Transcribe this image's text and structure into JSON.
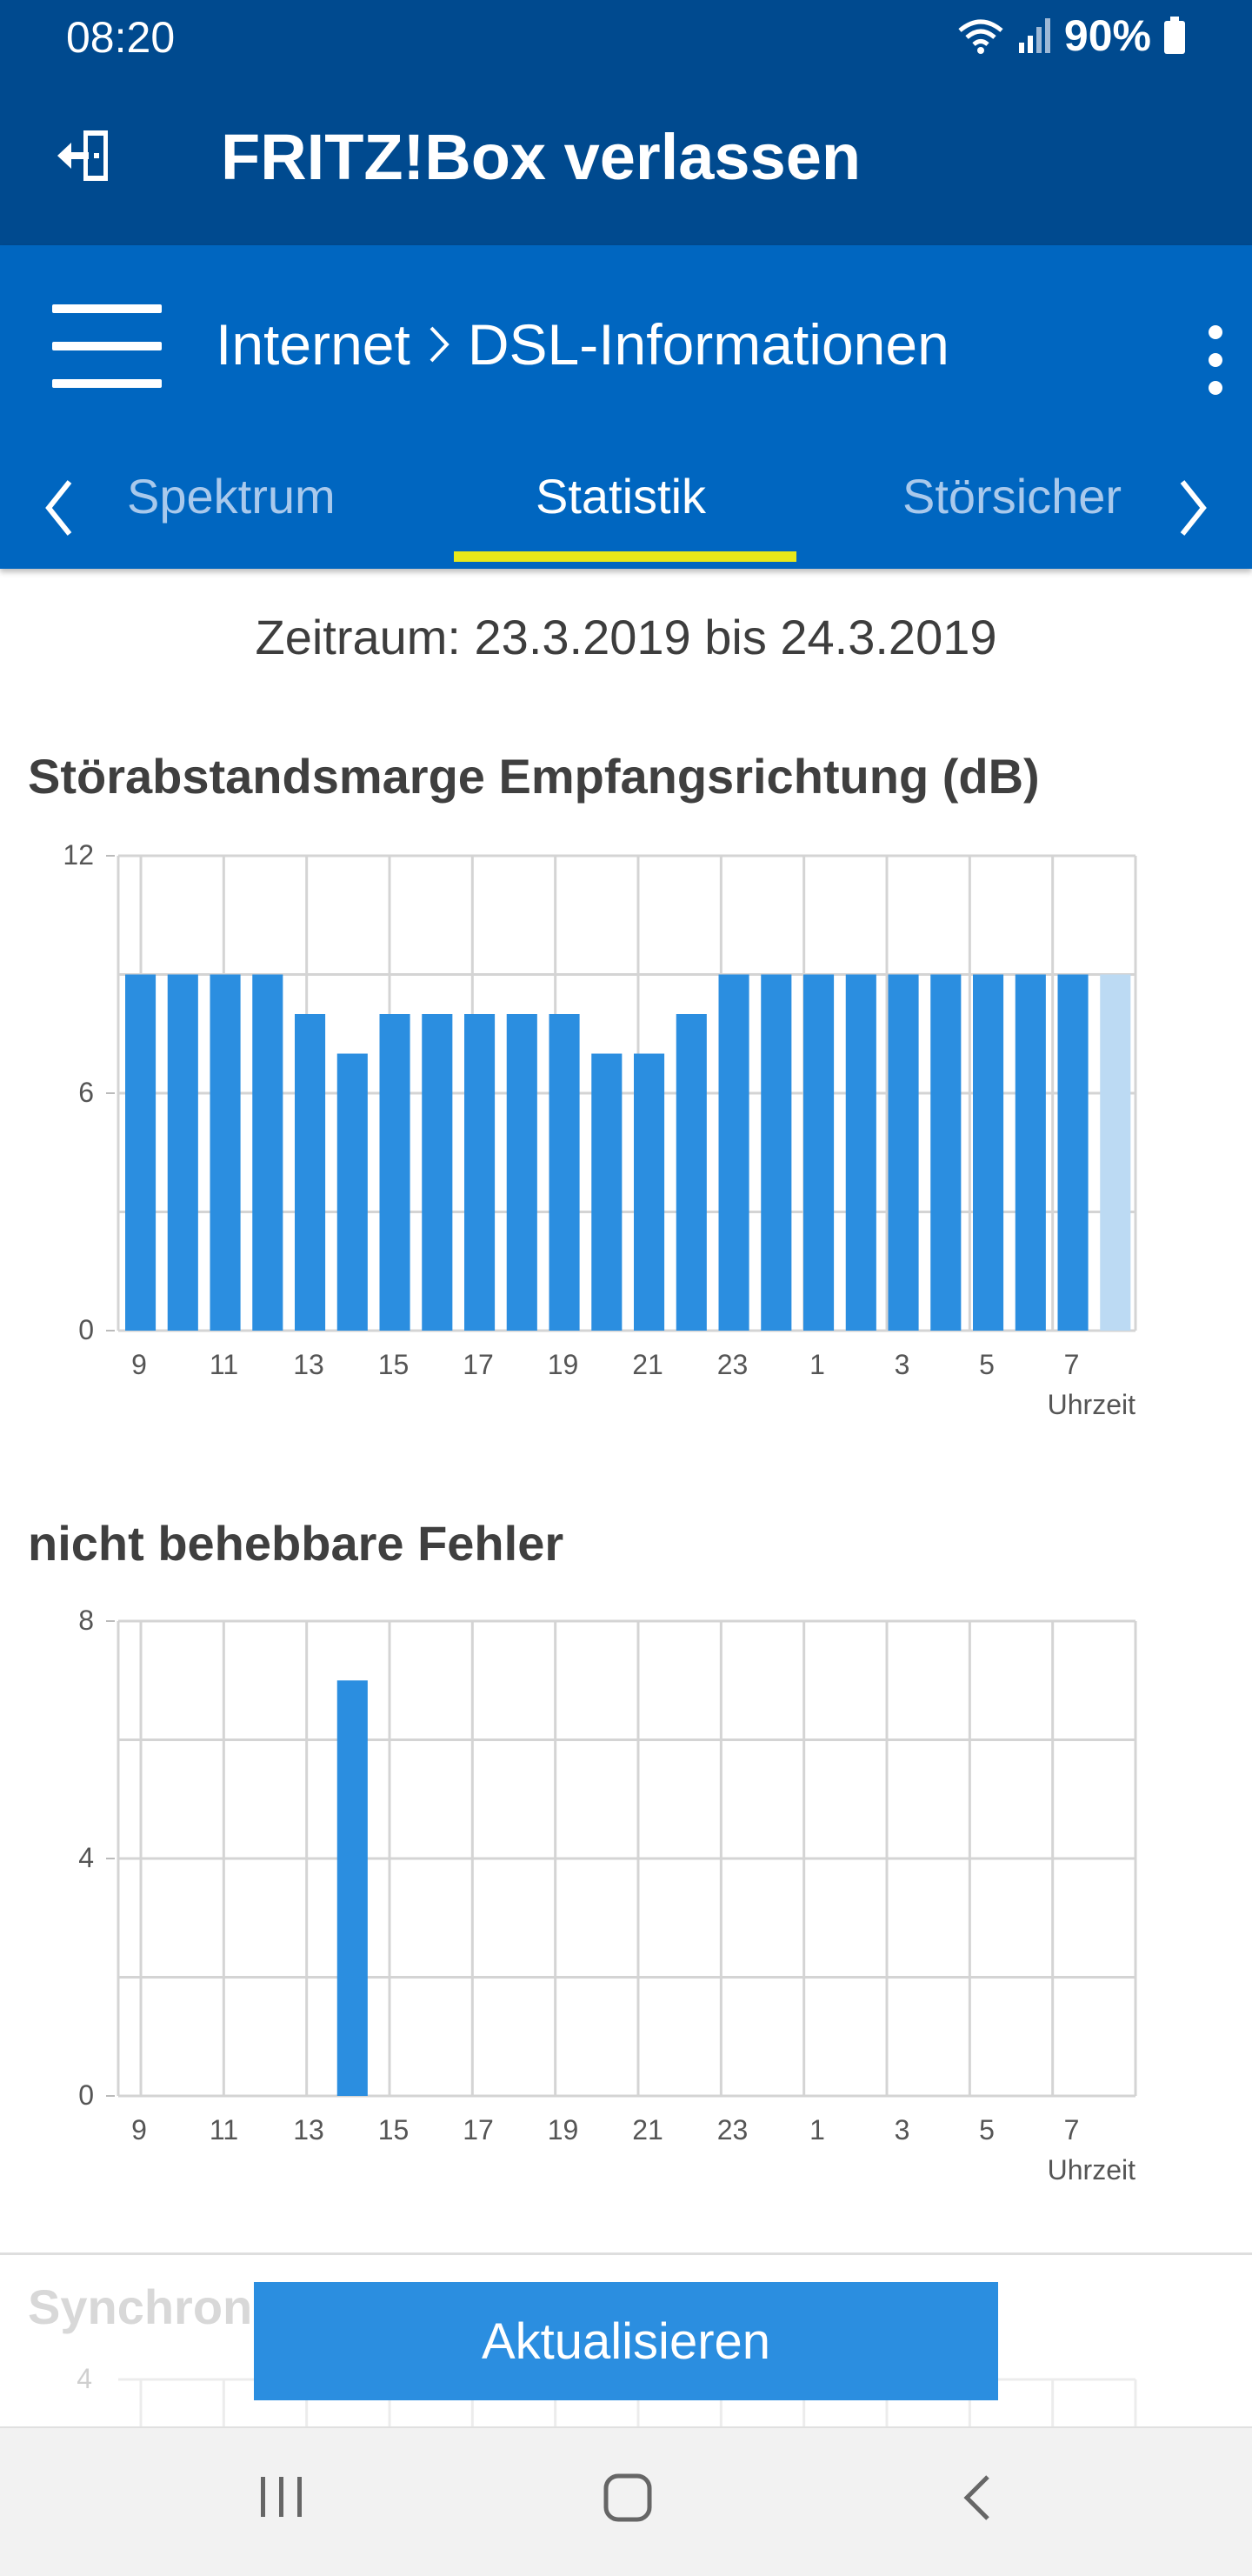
{
  "status_bar": {
    "time": "08:20",
    "battery": "90%"
  },
  "app_bar": {
    "title": "FRITZ!Box verlassen",
    "exit_icon": "exit-icon"
  },
  "header": {
    "breadcrumb": {
      "root": "Internet",
      "page": "DSL-Informationen"
    },
    "tabs": [
      "Spektrum",
      "Statistik",
      "Störsicher"
    ],
    "active_tab": "Statistik"
  },
  "content": {
    "period": "Zeitraum: 23.3.2019 bis 24.3.2019",
    "section1_title": "Störabstandsmarge Empfangsrichtung (dB)",
    "section2_title": "nicht behebbare Fehler",
    "section3_title": "Synchroni",
    "update_label": "Aktualisieren"
  },
  "colors": {
    "bar": "#2b8ee0",
    "bar_current": "#bcdaf3",
    "header": "#0066c0",
    "topbar": "#004a8f",
    "tab_indicator": "#e8e81a"
  },
  "chart_data": [
    {
      "type": "bar",
      "title": "Störabstandsmarge Empfangsrichtung (dB)",
      "xlabel": "Uhrzeit",
      "ylabel": "dB",
      "ylim": [
        0,
        12
      ],
      "y_ticks": [
        "0",
        "6",
        "12"
      ],
      "x_ticks": [
        "9",
        "11",
        "13",
        "15",
        "17",
        "19",
        "21",
        "23",
        "1",
        "3",
        "5",
        "7"
      ],
      "categories": [
        "9",
        "10",
        "11",
        "12",
        "13",
        "14",
        "15",
        "16",
        "17",
        "18",
        "19",
        "20",
        "21",
        "22",
        "23",
        "0",
        "1",
        "2",
        "3",
        "4",
        "5",
        "6",
        "7",
        "8"
      ],
      "values": [
        9,
        9,
        9,
        9,
        8,
        7,
        8,
        8,
        8,
        8,
        8,
        7,
        7,
        8,
        9,
        9,
        9,
        9,
        9,
        9,
        9,
        9,
        9,
        9
      ],
      "current_index": 23,
      "grid": true
    },
    {
      "type": "bar",
      "title": "nicht behebbare Fehler",
      "xlabel": "Uhrzeit",
      "ylim": [
        0,
        8
      ],
      "y_ticks": [
        "0",
        "4",
        "8"
      ],
      "x_ticks": [
        "9",
        "11",
        "13",
        "15",
        "17",
        "19",
        "21",
        "23",
        "1",
        "3",
        "5",
        "7"
      ],
      "categories": [
        "9",
        "10",
        "11",
        "12",
        "13",
        "14",
        "15",
        "16",
        "17",
        "18",
        "19",
        "20",
        "21",
        "22",
        "23",
        "0",
        "1",
        "2",
        "3",
        "4",
        "5",
        "6",
        "7",
        "8"
      ],
      "values": [
        0,
        0,
        0,
        0,
        0,
        7,
        0,
        0,
        0,
        0,
        0,
        0,
        0,
        0,
        0,
        0,
        0,
        0,
        0,
        0,
        0,
        0,
        0,
        0
      ],
      "grid": true
    },
    {
      "type": "bar",
      "title": "Synchroni",
      "y_ticks": [
        "4"
      ],
      "partial": true
    }
  ]
}
